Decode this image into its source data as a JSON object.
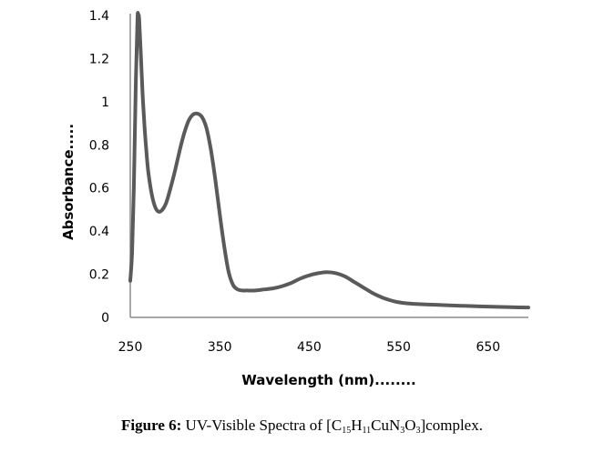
{
  "chart_data": {
    "type": "line",
    "title": "",
    "xlabel": "Wavelength (nm)........",
    "ylabel": "Absorbance.....",
    "xlim": [
      250,
      695
    ],
    "ylim": [
      0,
      1.4
    ],
    "x_ticks": [
      "250",
      "350",
      "450",
      "550",
      "650"
    ],
    "y_ticks": [
      "0",
      "0.2",
      "0.4",
      "0.6",
      "0.8",
      "1",
      "1.2",
      "1.4"
    ],
    "grid": false,
    "legend": "none",
    "series": [
      {
        "name": "UV-Visible Spectrum",
        "color": "#5a5a5a",
        "x": [
          250,
          252,
          254,
          256,
          258,
          259,
          260,
          262,
          264,
          266,
          268,
          270,
          274,
          278,
          282,
          286,
          290,
          295,
          300,
          305,
          310,
          315,
          320,
          325,
          330,
          335,
          340,
          345,
          350,
          355,
          360,
          365,
          370,
          375,
          380,
          390,
          400,
          410,
          420,
          430,
          440,
          450,
          460,
          470,
          480,
          490,
          500,
          510,
          520,
          530,
          540,
          550,
          560,
          570,
          580,
          600,
          620,
          640,
          660,
          680,
          695
        ],
        "y": [
          0.17,
          0.3,
          0.6,
          1.05,
          1.38,
          1.4,
          1.38,
          1.2,
          1.02,
          0.88,
          0.77,
          0.68,
          0.57,
          0.51,
          0.49,
          0.5,
          0.53,
          0.6,
          0.68,
          0.77,
          0.85,
          0.91,
          0.94,
          0.945,
          0.93,
          0.88,
          0.78,
          0.64,
          0.48,
          0.33,
          0.21,
          0.15,
          0.13,
          0.125,
          0.125,
          0.125,
          0.13,
          0.135,
          0.145,
          0.16,
          0.18,
          0.195,
          0.205,
          0.21,
          0.205,
          0.19,
          0.165,
          0.14,
          0.115,
          0.095,
          0.08,
          0.07,
          0.065,
          0.062,
          0.06,
          0.057,
          0.054,
          0.051,
          0.049,
          0.047,
          0.046
        ]
      }
    ]
  },
  "caption": {
    "label": "Figure 6:",
    "text_before": " UV-Visible Spectra of [C",
    "sub1": "15",
    "text_h": "H",
    "sub2": "11",
    "text_cun": "CuN",
    "sub3": "3",
    "text_o": "O",
    "sub4": "3",
    "text_after": "]complex."
  }
}
